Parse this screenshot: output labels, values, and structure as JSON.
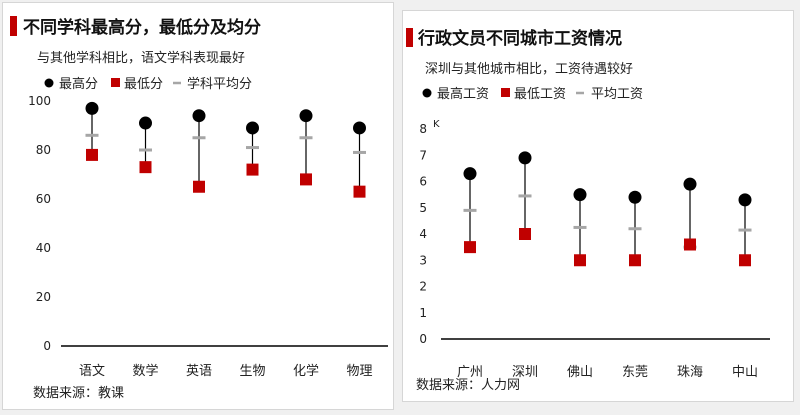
{
  "colors": {
    "max": "#000000",
    "min": "#c00000",
    "avg": "#a6a6a6",
    "stem": "#000000"
  },
  "charts": [
    {
      "title": "不同学科最高分，最低分及均分",
      "subtitle": "与其他学科相比，语文学科表现最好",
      "legend": {
        "max": "最高分",
        "min": "最低分",
        "avg": "学科平均分"
      },
      "source": "数据来源：教课",
      "y_ticks": [
        "0",
        "20",
        "40",
        "60",
        "80",
        "100"
      ],
      "unit": ""
    },
    {
      "title": "行政文员不同城市工资情况",
      "subtitle": "深圳与其他城市相比，工资待遇较好",
      "legend": {
        "max": "最高工资",
        "min": "最低工资",
        "avg": "平均工资"
      },
      "source": "数据来源：人力网",
      "y_ticks": [
        "0",
        "1",
        "2",
        "3",
        "4",
        "5",
        "6",
        "7",
        "8"
      ],
      "unit": "K"
    }
  ],
  "chart_data": [
    {
      "type": "scatter",
      "title": "不同学科最高分，最低分及均分",
      "categories": [
        "语文",
        "数学",
        "英语",
        "生物",
        "化学",
        "物理"
      ],
      "series": [
        {
          "name": "最高分",
          "values": [
            97,
            91,
            94,
            89,
            94,
            89
          ]
        },
        {
          "name": "最低分",
          "values": [
            78,
            73,
            65,
            72,
            68,
            63
          ]
        },
        {
          "name": "学科平均分",
          "values": [
            86,
            80,
            85,
            81,
            85,
            79
          ]
        }
      ],
      "ylim": [
        0,
        100
      ],
      "legend_position": "top-left",
      "grid": false
    },
    {
      "type": "scatter",
      "title": "行政文员不同城市工资情况",
      "categories": [
        "广州",
        "深圳",
        "佛山",
        "东莞",
        "珠海",
        "中山"
      ],
      "series": [
        {
          "name": "最高工资",
          "values": [
            6.3,
            6.9,
            5.5,
            5.4,
            5.9,
            5.3
          ]
        },
        {
          "name": "最低工资",
          "values": [
            3.5,
            4.0,
            3.0,
            3.0,
            3.6,
            3.0
          ]
        },
        {
          "name": "平均工资",
          "values": [
            4.9,
            5.45,
            4.25,
            4.2,
            3.5,
            4.15
          ]
        }
      ],
      "ylim": [
        0,
        8
      ],
      "legend_position": "top-left",
      "grid": false
    }
  ]
}
